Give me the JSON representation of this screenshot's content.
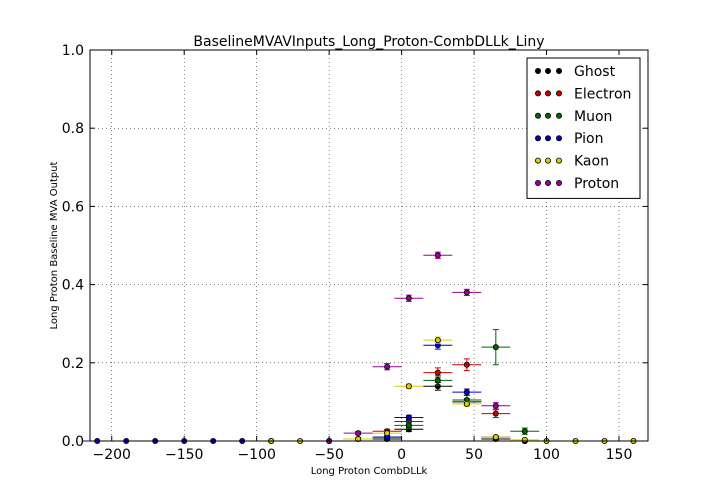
{
  "chart_data": {
    "type": "scatter",
    "title": "BaselineMVAVInputs_Long_Proton-CombDLLk_Liny",
    "xlabel": "Long Proton CombDLLk",
    "ylabel": "Long Proton Baseline MVA Output",
    "xlim": [
      -215,
      170
    ],
    "ylim": [
      0.0,
      1.0
    ],
    "xticks": [
      -200,
      -150,
      -100,
      -50,
      0,
      50,
      100,
      150
    ],
    "xtick_labels": [
      "−200",
      "−150",
      "−100",
      "−50",
      "0",
      "50",
      "100",
      "150"
    ],
    "yticks": [
      0.0,
      0.2,
      0.4,
      0.6,
      0.8,
      1.0
    ],
    "ytick_labels": [
      "0.0",
      "0.2",
      "0.4",
      "0.6",
      "0.8",
      "1.0"
    ],
    "grid": true,
    "legend_position": "top-right",
    "x_halfwidth": 10,
    "series": [
      {
        "name": "Ghost",
        "color": "#000000",
        "x": [
          -10,
          5,
          25,
          45,
          65,
          85
        ],
        "y": [
          0.005,
          0.03,
          0.14,
          0.1,
          0.005,
          0.0
        ],
        "yerr": [
          0.003,
          0.006,
          0.01,
          0.008,
          0.003,
          0.0
        ]
      },
      {
        "name": "Electron",
        "color": "#cc0000",
        "x": [
          -30,
          -10,
          5,
          25,
          45,
          65,
          85
        ],
        "y": [
          0.005,
          0.025,
          0.05,
          0.175,
          0.195,
          0.07,
          0.0
        ],
        "yerr": [
          0.003,
          0.005,
          0.007,
          0.012,
          0.015,
          0.01,
          0.0
        ]
      },
      {
        "name": "Muon",
        "color": "#006600",
        "x": [
          -10,
          5,
          25,
          45,
          65,
          85
        ],
        "y": [
          0.01,
          0.04,
          0.155,
          0.105,
          0.24,
          0.025
        ],
        "yerr": [
          0.004,
          0.008,
          0.012,
          0.012,
          0.045,
          0.008
        ]
      },
      {
        "name": "Pion",
        "color": "#0000cc",
        "x": [
          -210,
          -190,
          -170,
          -150,
          -130,
          -110,
          -90,
          -10,
          5,
          25,
          45,
          65,
          85
        ],
        "y": [
          0.0,
          0.0,
          0.0,
          0.0,
          0.0,
          0.0,
          0.0,
          0.01,
          0.06,
          0.245,
          0.125,
          0.01,
          0.0
        ],
        "yerr": [
          0.0,
          0.0,
          0.0,
          0.0,
          0.0,
          0.0,
          0.0,
          0.003,
          0.006,
          0.01,
          0.008,
          0.003,
          0.0
        ]
      },
      {
        "name": "Kaon",
        "color": "#ddcc00",
        "x": [
          -90,
          -70,
          -50,
          -30,
          -10,
          5,
          25,
          45,
          65,
          85,
          100,
          120,
          140,
          160
        ],
        "y": [
          0.0,
          0.0,
          0.0,
          0.005,
          0.02,
          0.14,
          0.258,
          0.095,
          0.01,
          0.003,
          0.0,
          0.0,
          0.0,
          0.0
        ],
        "yerr": [
          0.0,
          0.0,
          0.0,
          0.002,
          0.004,
          0.006,
          0.008,
          0.006,
          0.003,
          0.002,
          0.0,
          0.0,
          0.0,
          0.0
        ]
      },
      {
        "name": "Proton",
        "color": "#990099",
        "x": [
          -50,
          -30,
          -10,
          5,
          25,
          45,
          65
        ],
        "y": [
          0.0,
          0.02,
          0.19,
          0.365,
          0.475,
          0.38,
          0.09
        ],
        "yerr": [
          0.0,
          0.004,
          0.008,
          0.008,
          0.008,
          0.008,
          0.008
        ]
      }
    ]
  }
}
